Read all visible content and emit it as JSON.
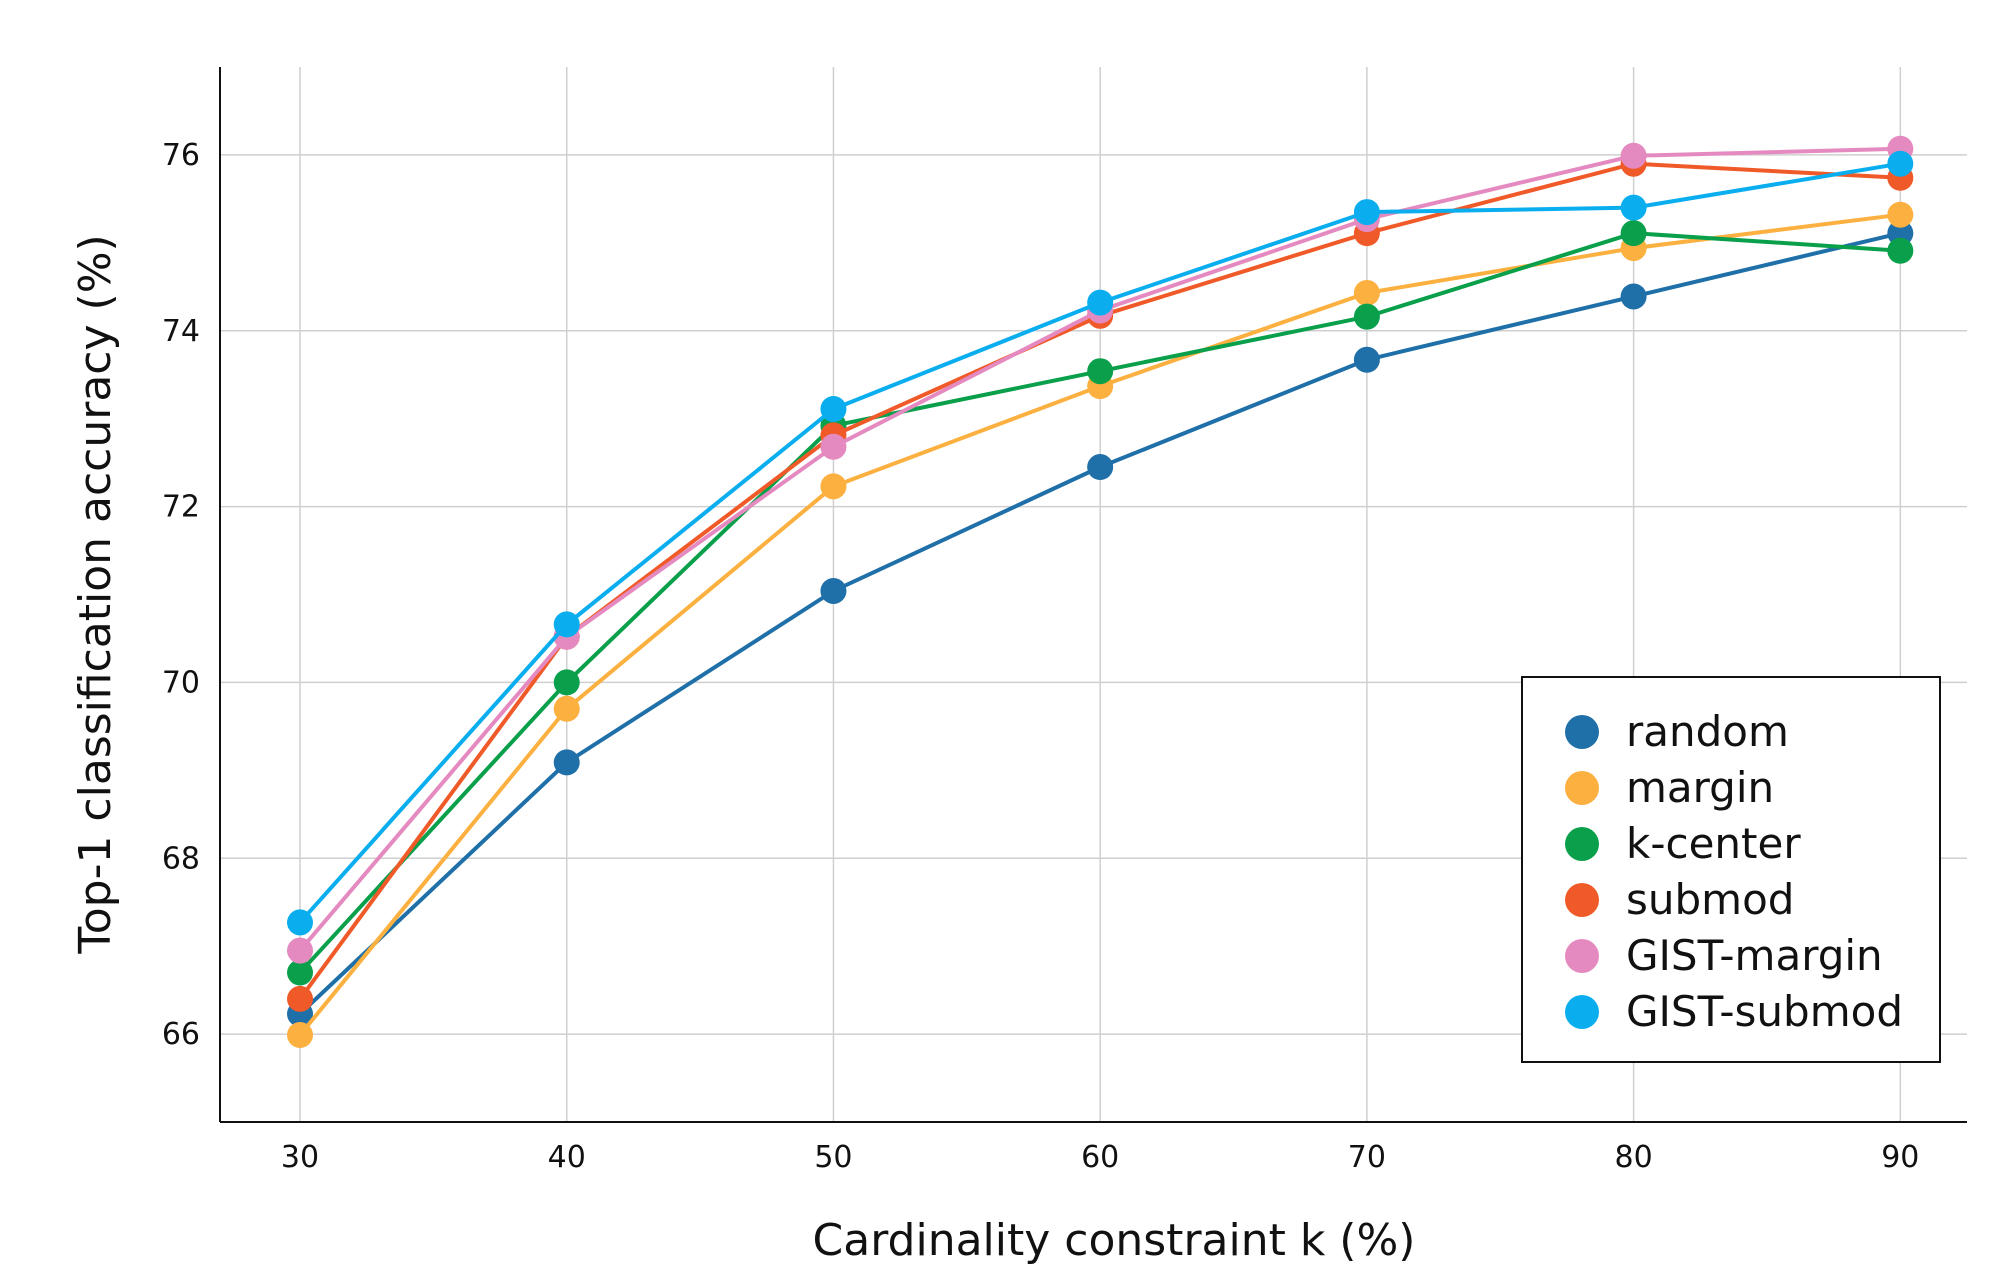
{
  "chart_data": {
    "type": "line",
    "title": "",
    "xlabel": "Cardinality constraint k (%)",
    "ylabel": "Top-1 classification accuracy (%)",
    "x": [
      30,
      40,
      50,
      60,
      70,
      80,
      90
    ],
    "xticks": [
      "30",
      "40",
      "50",
      "60",
      "70",
      "80",
      "90"
    ],
    "yticks": [
      "66",
      "68",
      "70",
      "72",
      "74",
      "76"
    ],
    "xlim": [
      27,
      92.5
    ],
    "ylim": [
      65,
      77
    ],
    "grid": true,
    "legend_position": "bottom-right",
    "series": [
      {
        "name": "random",
        "color": "#1f6fa8",
        "values": [
          66.23,
          69.09,
          71.04,
          72.45,
          73.67,
          74.39,
          75.11
        ]
      },
      {
        "name": "margin",
        "color": "#fbb040",
        "values": [
          65.99,
          69.7,
          72.23,
          73.37,
          74.43,
          74.94,
          75.32
        ]
      },
      {
        "name": "k-center",
        "color": "#0aa04b",
        "values": [
          66.7,
          70.0,
          72.92,
          73.54,
          74.16,
          75.11,
          74.91
        ]
      },
      {
        "name": "submod",
        "color": "#f05a28",
        "values": [
          66.4,
          70.52,
          72.81,
          74.17,
          75.11,
          75.9,
          75.74
        ]
      },
      {
        "name": "GIST-margin",
        "color": "#e58ac0",
        "values": [
          66.95,
          70.52,
          72.68,
          74.23,
          75.27,
          75.99,
          76.07
        ]
      },
      {
        "name": "GIST-submod",
        "color": "#0aaeef",
        "values": [
          67.27,
          70.66,
          73.11,
          74.32,
          75.35,
          75.4,
          75.9
        ]
      }
    ]
  }
}
